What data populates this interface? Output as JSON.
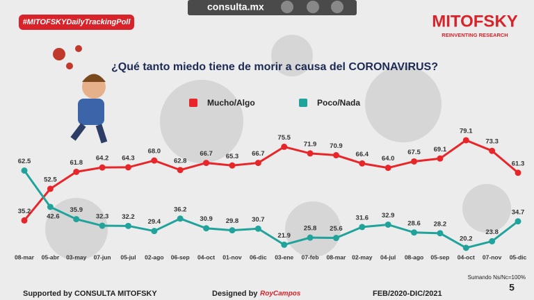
{
  "chart_data": {
    "type": "line",
    "title": "¿Qué tanto miedo tiene de morir a causa del CORONAVIRUS?",
    "hashtag": "#MITOFSKYDailyTrackingPoll",
    "site": "consulta.mx",
    "brand": "MITOFSKY",
    "brand_tagline": "REINVENTING RESEARCH",
    "supported": "Supported by  CONSULTA  MITOFSKY",
    "designed": "Designed by",
    "designer": "RoyCampos",
    "period": "FEB/2020-DIC/2021",
    "note": "Sumando Ns/Nc=100%",
    "page_number": "5",
    "categories": [
      "08-mar",
      "05-abr",
      "03-may",
      "07-jun",
      "05-jul",
      "02-ago",
      "06-sep",
      "04-oct",
      "01-nov",
      "06-dic",
      "03-ene",
      "07-feb",
      "08-mar",
      "02-may",
      "04-jul",
      "08-ago",
      "05-sep",
      "04-oct",
      "07-nov",
      "05-dic"
    ],
    "series": [
      {
        "name": "Mucho/Algo",
        "color": "#e8262a",
        "values": [
          35.2,
          52.5,
          61.8,
          64.2,
          64.3,
          68.0,
          62.8,
          66.7,
          65.3,
          66.7,
          75.5,
          71.9,
          70.9,
          66.4,
          64.0,
          67.5,
          69.1,
          79.1,
          73.3,
          61.3
        ],
        "value_labels": [
          "35.2",
          "52.5",
          "61.8",
          "64.2",
          "64.3",
          "68.0",
          "62.8",
          "66.7",
          "65.3",
          "66.7",
          "75.5",
          "71.9",
          "70.9",
          "66.4",
          "64.0",
          "67.5",
          "69.1",
          "79.1",
          "73.3",
          "61.3"
        ]
      },
      {
        "name": "Poco/Nada",
        "color": "#20a39b",
        "values": [
          62.5,
          42.6,
          35.9,
          32.3,
          32.2,
          29.4,
          36.2,
          30.9,
          29.8,
          30.7,
          21.9,
          25.8,
          25.6,
          31.6,
          32.9,
          28.6,
          28.2,
          20.2,
          23.8,
          34.7
        ],
        "value_labels": [
          "62.5",
          "42.6",
          "35.9",
          "32.3",
          "32.2",
          "29.4",
          "36.2",
          "30.9",
          "29.8",
          "30.7",
          "21.9",
          "25.8",
          "25.6",
          "31.6",
          "32.9",
          "28.6",
          "28.2",
          "20.2",
          "23.8",
          "34.7"
        ]
      }
    ]
  }
}
